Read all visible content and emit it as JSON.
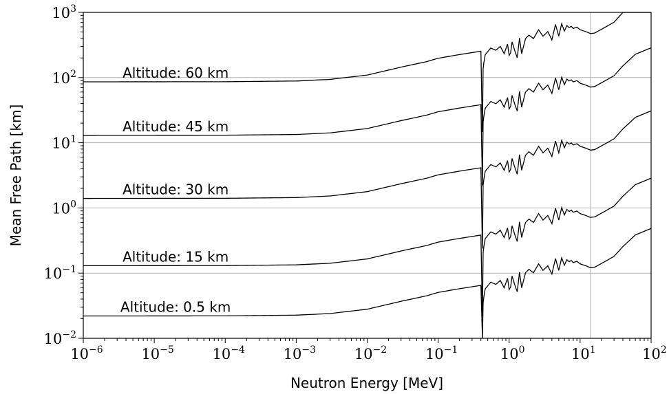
{
  "chart_data": {
    "type": "line",
    "title": "",
    "xlabel": "Neutron Energy [MeV]",
    "ylabel": "Mean Free Path [km]",
    "xscale": "log",
    "yscale": "log",
    "xlim": [
      1e-06,
      100
    ],
    "ylim": [
      0.01,
      1000
    ],
    "grid": "light gray lines at y = 0.1, 1, 10, 100 and x = 14",
    "x_ticks": [
      {
        "base": "10",
        "exp": "−6",
        "value": 1e-06
      },
      {
        "base": "10",
        "exp": "−5",
        "value": 1e-05
      },
      {
        "base": "10",
        "exp": "−4",
        "value": 0.0001
      },
      {
        "base": "10",
        "exp": "−3",
        "value": 0.001
      },
      {
        "base": "10",
        "exp": "−2",
        "value": 0.01
      },
      {
        "base": "10",
        "exp": "−1",
        "value": 0.1
      },
      {
        "base": "10",
        "exp": "0",
        "value": 1
      },
      {
        "base": "10",
        "exp": "1",
        "value": 10
      },
      {
        "base": "10",
        "exp": "2",
        "value": 100
      }
    ],
    "y_ticks": [
      {
        "base": "10",
        "exp": "−2",
        "value": 0.01
      },
      {
        "base": "10",
        "exp": "−1",
        "value": 0.1
      },
      {
        "base": "10",
        "exp": "0",
        "value": 1
      },
      {
        "base": "10",
        "exp": "1",
        "value": 10
      },
      {
        "base": "10",
        "exp": "2",
        "value": 100
      },
      {
        "base": "10",
        "exp": "3",
        "value": 1000
      }
    ],
    "series": [
      {
        "name": "Altitude: 60 km",
        "base_value": 86
      },
      {
        "name": "Altitude: 45 km",
        "base_value": 13
      },
      {
        "name": "Altitude: 30 km",
        "base_value": 1.4
      },
      {
        "name": "Altitude: 15 km",
        "base_value": 0.13
      },
      {
        "name": "Altitude: 0.5 km",
        "base_value": 0.022
      }
    ],
    "profile_multipliers": {
      "x": [
        1e-06,
        0.0001,
        0.001,
        0.003,
        0.01,
        0.03,
        0.07,
        0.1,
        0.2,
        0.4,
        0.42,
        0.43,
        0.44,
        0.46,
        0.55,
        0.65,
        0.75,
        0.85,
        0.95,
        1.0,
        1.05,
        1.1,
        1.2,
        1.3,
        1.4,
        1.5,
        1.7,
        1.9,
        2.2,
        2.6,
        3.0,
        3.5,
        4.0,
        4.5,
        5.0,
        5.5,
        6.0,
        6.5,
        7.0,
        7.5,
        8.0,
        9.0,
        10.0,
        12.0,
        14.0,
        16.0,
        20.0,
        30.0,
        40.0,
        60.0,
        100.0
      ],
      "m": [
        1.0,
        1.004,
        1.03,
        1.09,
        1.27,
        1.68,
        2.05,
        2.3,
        2.62,
        2.95,
        0.17,
        1.6,
        1.95,
        2.6,
        3.3,
        3.05,
        3.5,
        2.7,
        3.8,
        2.55,
        2.8,
        4.1,
        3.0,
        2.35,
        4.7,
        2.7,
        4.6,
        5.2,
        4.6,
        6.3,
        5.0,
        5.9,
        4.4,
        7.6,
        5.0,
        7.8,
        6.0,
        7.3,
        6.8,
        7.1,
        6.6,
        6.9,
        6.3,
        5.9,
        5.5,
        5.6,
        6.4,
        8.2,
        11.6,
        17.5,
        22.0
      ]
    },
    "line_color": "#000000",
    "grid_color": "#b0b0b0"
  }
}
